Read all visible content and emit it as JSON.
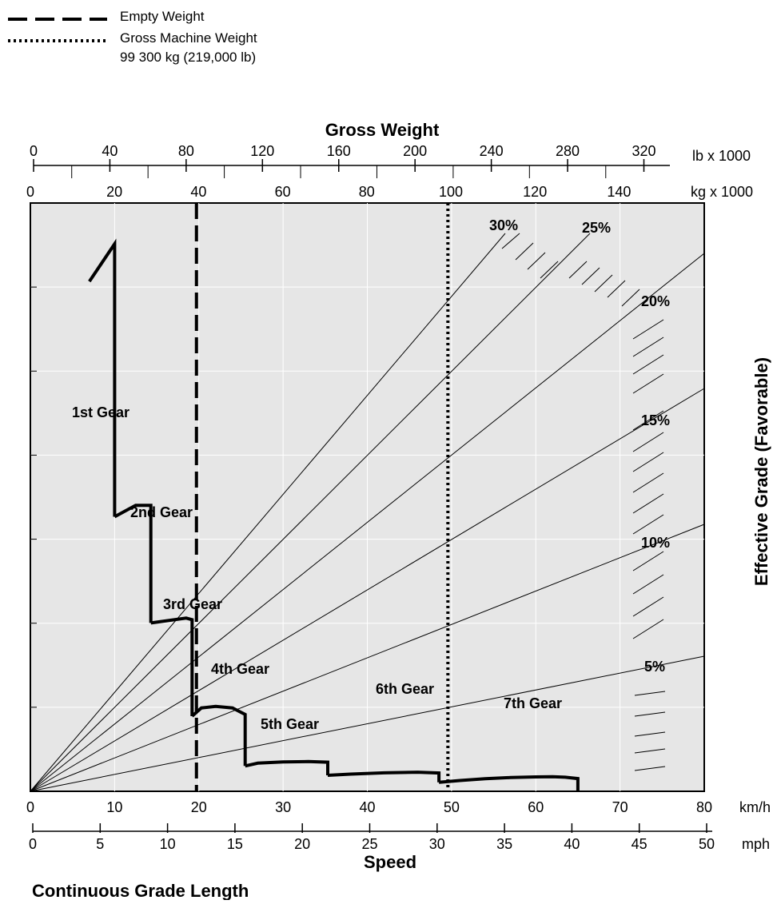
{
  "legend": [
    {
      "label": "Empty Weight",
      "style": "dashed"
    },
    {
      "label": "Gross Machine Weight",
      "style": "dotted",
      "sublabel": "99 300 kg (219,000 lb)"
    }
  ],
  "chart_data": {
    "type": "line",
    "title": "Gross Weight",
    "xlabel": "Speed",
    "ylabel": "Effective Grade (Favorable)",
    "footer": "Continuous Grade Length",
    "grid": true,
    "background": "#e6e6e6",
    "top_axis_lb": {
      "unit": "lb x 1000",
      "ticks": [
        0,
        40,
        80,
        120,
        160,
        200,
        240,
        280,
        320
      ]
    },
    "top_axis_kg": {
      "unit": "kg x 1000",
      "ticks": [
        0,
        20,
        40,
        60,
        80,
        100,
        120,
        140
      ]
    },
    "bottom_axis_kmh": {
      "unit": "km/h",
      "ticks": [
        0,
        10,
        20,
        30,
        40,
        50,
        60,
        70,
        80
      ]
    },
    "bottom_axis_mph": {
      "unit": "mph",
      "ticks": [
        0,
        5,
        10,
        15,
        20,
        25,
        30,
        35,
        40,
        45,
        50
      ]
    },
    "weight_lines": [
      {
        "name": "Empty Weight",
        "kg_x1000": 39.5,
        "style": "dashed"
      },
      {
        "name": "Gross Machine Weight",
        "kg_x1000": 99.3,
        "style": "dotted"
      }
    ],
    "grade_lines": [
      {
        "label": "30%",
        "end_kg_x1000": 111
      },
      {
        "label": "25%",
        "end_kg_x1000": 129
      },
      {
        "label": "20%",
        "end_kg_x1000": 162
      },
      {
        "label": "15%",
        "end_kg_x1000": 162
      },
      {
        "label": "10%",
        "end_kg_x1000": 162
      },
      {
        "label": "5%",
        "end_kg_x1000": 162
      }
    ],
    "gears": [
      {
        "label": "1st Gear",
        "points": [
          [
            7,
            31.2
          ],
          [
            10,
            33.5
          ],
          [
            10,
            16.8
          ]
        ]
      },
      {
        "label": "2nd Gear",
        "points": [
          [
            10,
            16.8
          ],
          [
            12.5,
            17.5
          ],
          [
            14.3,
            17.5
          ],
          [
            14.3,
            10.3
          ]
        ]
      },
      {
        "label": "3rd Gear",
        "points": [
          [
            14.3,
            10.3
          ],
          [
            18.5,
            10.6
          ],
          [
            19.2,
            10.5
          ],
          [
            19.2,
            4.6
          ]
        ]
      },
      {
        "label": "4th Gear",
        "points": [
          [
            19.2,
            4.6
          ],
          [
            20.3,
            5.1
          ],
          [
            22,
            5.2
          ],
          [
            24,
            5.1
          ],
          [
            25.5,
            4.7
          ],
          [
            25.5,
            1.55
          ]
        ]
      },
      {
        "label": "5th Gear",
        "points": [
          [
            25.5,
            1.55
          ],
          [
            27,
            1.72
          ],
          [
            30,
            1.8
          ],
          [
            33,
            1.82
          ],
          [
            35.3,
            1.78
          ],
          [
            35.3,
            0.98
          ]
        ]
      },
      {
        "label": "6th Gear",
        "points": [
          [
            35.3,
            0.98
          ],
          [
            38,
            1.05
          ],
          [
            42,
            1.13
          ],
          [
            46,
            1.17
          ],
          [
            48.5,
            1.12
          ],
          [
            48.5,
            0.55
          ]
        ]
      },
      {
        "label": "7th Gear",
        "points": [
          [
            48.5,
            0.55
          ],
          [
            51,
            0.66
          ],
          [
            54,
            0.77
          ],
          [
            57,
            0.84
          ],
          [
            60,
            0.88
          ],
          [
            62,
            0.89
          ],
          [
            63.5,
            0.86
          ],
          [
            65,
            0.78
          ],
          [
            65,
            0
          ]
        ]
      }
    ]
  }
}
